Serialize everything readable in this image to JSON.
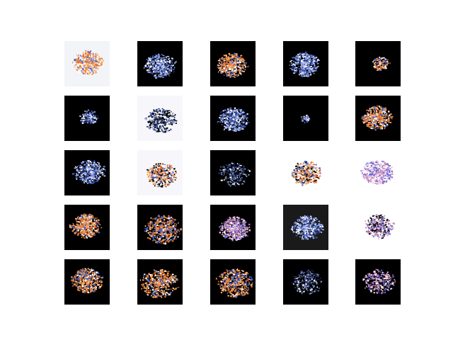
{
  "figure": {
    "rows": 5,
    "cols": 5,
    "samples": [
      {
        "bg": "#f2f4f8",
        "blob": "mixed-orange-blue"
      },
      {
        "bg": "#000000",
        "blob": "blue-white-scatter"
      },
      {
        "bg": "#000000",
        "blob": "orange"
      },
      {
        "bg": "#000000",
        "blob": "blue-grey"
      },
      {
        "bg": "#000000",
        "blob": "orange-small"
      },
      {
        "bg": "#000000",
        "blob": "blue-small"
      },
      {
        "bg": "#f7f7fb",
        "blob": "blue-dark-center"
      },
      {
        "bg": "#000000",
        "blob": "blue-white"
      },
      {
        "bg": "#000000",
        "blob": "tiny-grey"
      },
      {
        "bg": "#000000",
        "blob": "orange-blue"
      },
      {
        "bg": "#000000",
        "blob": "blue-purple"
      },
      {
        "bg": "#f7f7fb",
        "blob": "orange-stripe-dark"
      },
      {
        "bg": "#000000",
        "blob": "dark-blue"
      },
      {
        "bg": "#ffffff",
        "blob": "orange-bottom-dark"
      },
      {
        "bg": "#ffffff",
        "blob": "pink-blue"
      },
      {
        "bg": "#000000",
        "blob": "orange-diagonal"
      },
      {
        "bg": "#000000",
        "blob": "orange-large"
      },
      {
        "bg": "#000000",
        "blob": "orange-pink"
      },
      {
        "bg": "#1a1a1a",
        "blob": "mixed-speckle"
      },
      {
        "bg": "#ffffff",
        "blob": "pink-dark-patch"
      },
      {
        "bg": "#000000",
        "blob": "blue-orange"
      },
      {
        "bg": "#000000",
        "blob": "orange-wide"
      },
      {
        "bg": "#000000",
        "blob": "orange-blue-wide"
      },
      {
        "bg": "#000000",
        "blob": "dark-mixed"
      },
      {
        "bg": "#000000",
        "blob": "pink-dark"
      }
    ]
  }
}
